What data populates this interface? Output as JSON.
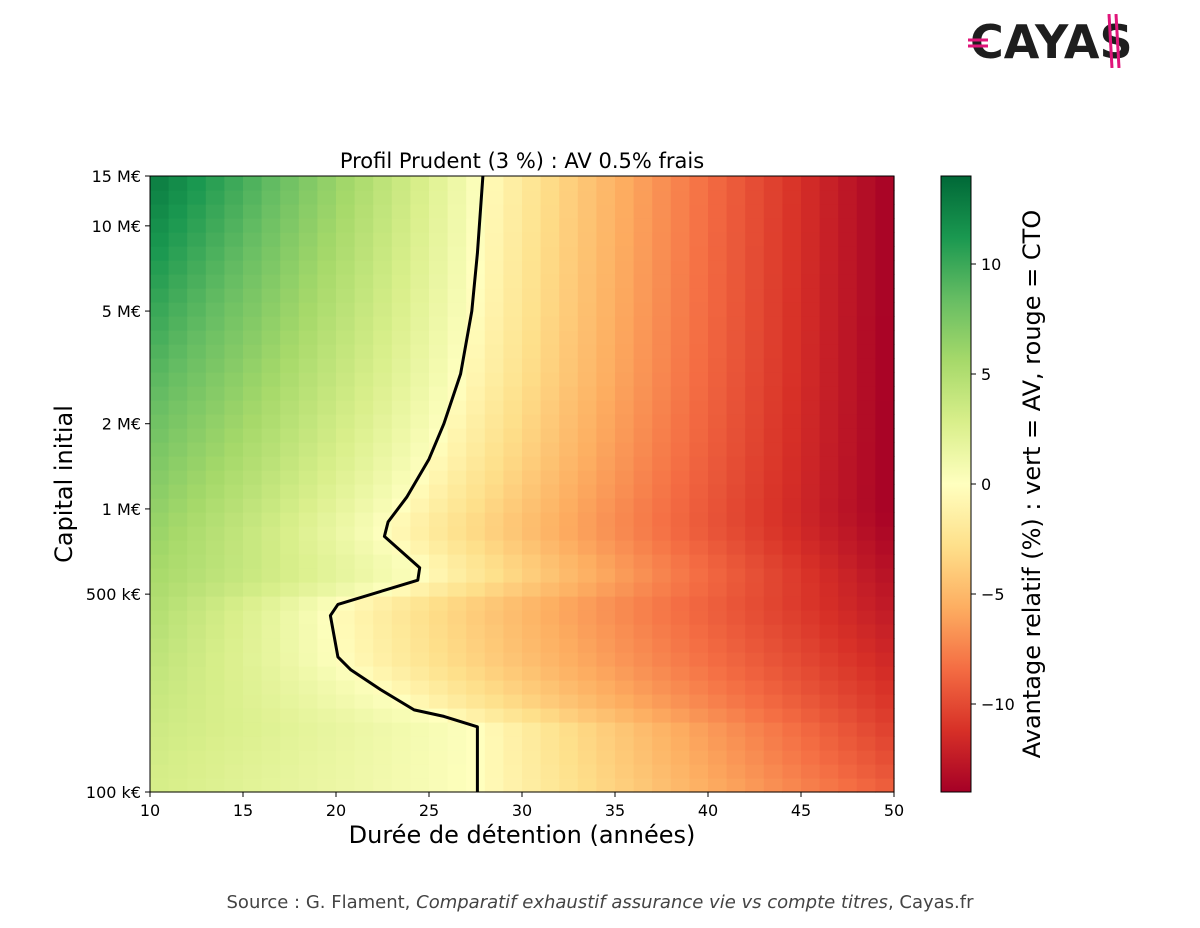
{
  "logo": {
    "text": "CAYAS",
    "accent": "#e0157a",
    "color": "#1e1e1e"
  },
  "source": {
    "prefix": "Source : G. Flament, ",
    "work": "Comparatif exhaustif assurance vie vs compte titres",
    "suffix": ", Cayas.fr"
  },
  "chart_data": {
    "type": "heatmap",
    "title": "Profil Prudent (3 %) : AV 0.5% frais",
    "xlabel": "Durée de détention (années)",
    "ylabel": "Capital initial",
    "colorbar_label": "Avantage relatif (%) : vert = AV, rouge = CTO",
    "colormap": "RdYlGn",
    "xlim": [
      10,
      50
    ],
    "x_ticks": [
      10,
      15,
      20,
      25,
      30,
      35,
      40,
      45,
      50
    ],
    "y_scale": "log",
    "ylim": [
      100000,
      15000000
    ],
    "y_ticks": [
      {
        "value": 100000,
        "label": "100 k€"
      },
      {
        "value": 500000,
        "label": "500 k€"
      },
      {
        "value": 1000000,
        "label": "1 M€"
      },
      {
        "value": 2000000,
        "label": "2 M€"
      },
      {
        "value": 5000000,
        "label": "5 M€"
      },
      {
        "value": 10000000,
        "label": "10 M€"
      },
      {
        "value": 15000000,
        "label": "15 M€"
      }
    ],
    "color_range": [
      -14,
      14
    ],
    "colorbar_ticks": [
      {
        "value": 10,
        "label": "10"
      },
      {
        "value": 5,
        "label": "5"
      },
      {
        "value": 0,
        "label": "0"
      },
      {
        "value": -5,
        "label": "−5"
      },
      {
        "value": -10,
        "label": "−10"
      }
    ],
    "zero_contour": [
      {
        "capital": 100000,
        "years": 27.6
      },
      {
        "capital": 170000,
        "years": 27.6
      },
      {
        "capital": 185000,
        "years": 25.8
      },
      {
        "capital": 195000,
        "years": 24.2
      },
      {
        "capital": 230000,
        "years": 22.4
      },
      {
        "capital": 270000,
        "years": 20.8
      },
      {
        "capital": 300000,
        "years": 20.1
      },
      {
        "capital": 420000,
        "years": 19.7
      },
      {
        "capital": 460000,
        "years": 20.1
      },
      {
        "capital": 560000,
        "years": 24.4
      },
      {
        "capital": 620000,
        "years": 24.5
      },
      {
        "capital": 800000,
        "years": 22.6
      },
      {
        "capital": 900000,
        "years": 22.8
      },
      {
        "capital": 1100000,
        "years": 23.8
      },
      {
        "capital": 1500000,
        "years": 25.0
      },
      {
        "capital": 2000000,
        "years": 25.8
      },
      {
        "capital": 3000000,
        "years": 26.7
      },
      {
        "capital": 5000000,
        "years": 27.3
      },
      {
        "capital": 8000000,
        "years": 27.6
      },
      {
        "capital": 15000000,
        "years": 27.9
      }
    ]
  }
}
